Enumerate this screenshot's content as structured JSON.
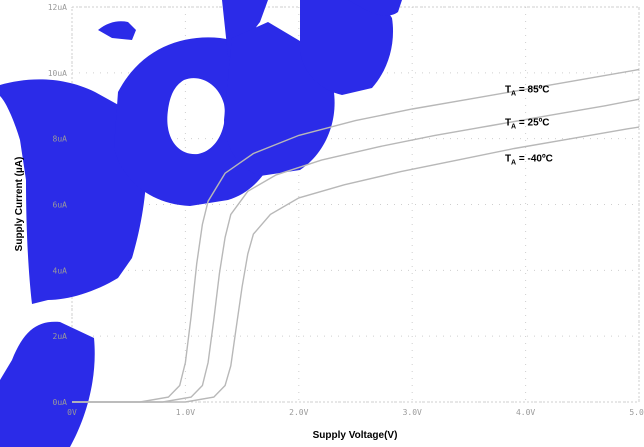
{
  "chart_data": {
    "type": "line",
    "xlabel": "Supply Voltage(V)",
    "ylabel": "Supply Current (µA)",
    "xlim": [
      0,
      5.0
    ],
    "ylim": [
      0,
      12
    ],
    "x_ticks": [
      "0V",
      "1.0V",
      "2.0V",
      "3.0V",
      "4.0V",
      "5.0V"
    ],
    "y_ticks": [
      "0uA",
      "2uA",
      "4uA",
      "6uA",
      "8uA",
      "10uA",
      "12uA"
    ],
    "grid": true,
    "series": [
      {
        "name": "T_A = 85ºC",
        "name_main": "T",
        "name_sub": "A",
        "name_rest": " = 85ºC",
        "color": "#b8b8b8",
        "x": [
          0,
          0.6,
          0.85,
          0.95,
          1.0,
          1.05,
          1.1,
          1.15,
          1.2,
          1.35,
          1.6,
          2.0,
          2.5,
          3.0,
          3.5,
          4.0,
          4.5,
          5.0
        ],
        "y": [
          0,
          0,
          0.15,
          0.5,
          1.2,
          2.6,
          4.2,
          5.4,
          6.1,
          6.95,
          7.55,
          8.1,
          8.55,
          8.9,
          9.2,
          9.5,
          9.8,
          10.1
        ]
      },
      {
        "name": "T_A = 25ºC",
        "name_main": "T",
        "name_sub": "A",
        "name_rest": " = 25ºC",
        "color": "#b8b8b8",
        "x": [
          0,
          0.8,
          1.05,
          1.15,
          1.2,
          1.25,
          1.3,
          1.35,
          1.4,
          1.55,
          1.8,
          2.2,
          2.7,
          3.2,
          3.7,
          4.2,
          4.7,
          5.0
        ],
        "y": [
          0,
          0,
          0.15,
          0.5,
          1.2,
          2.5,
          3.9,
          5.0,
          5.7,
          6.4,
          6.9,
          7.35,
          7.75,
          8.1,
          8.4,
          8.7,
          9.0,
          9.2
        ]
      },
      {
        "name": "T_A = -40ºC",
        "name_main": "T",
        "name_sub": "A",
        "name_rest": " = -40ºC",
        "color": "#b8b8b8",
        "x": [
          0,
          1.0,
          1.25,
          1.35,
          1.4,
          1.45,
          1.5,
          1.55,
          1.6,
          1.75,
          2.0,
          2.4,
          2.9,
          3.4,
          3.9,
          4.4,
          4.9,
          5.0
        ],
        "y": [
          0,
          0,
          0.15,
          0.5,
          1.1,
          2.3,
          3.5,
          4.5,
          5.1,
          5.7,
          6.2,
          6.6,
          7.0,
          7.35,
          7.7,
          8.0,
          8.3,
          8.35
        ]
      }
    ]
  },
  "colors": {
    "grid": "#cfcfcf",
    "frame": "#cfcfcf",
    "watermark": "#2b2be8"
  }
}
